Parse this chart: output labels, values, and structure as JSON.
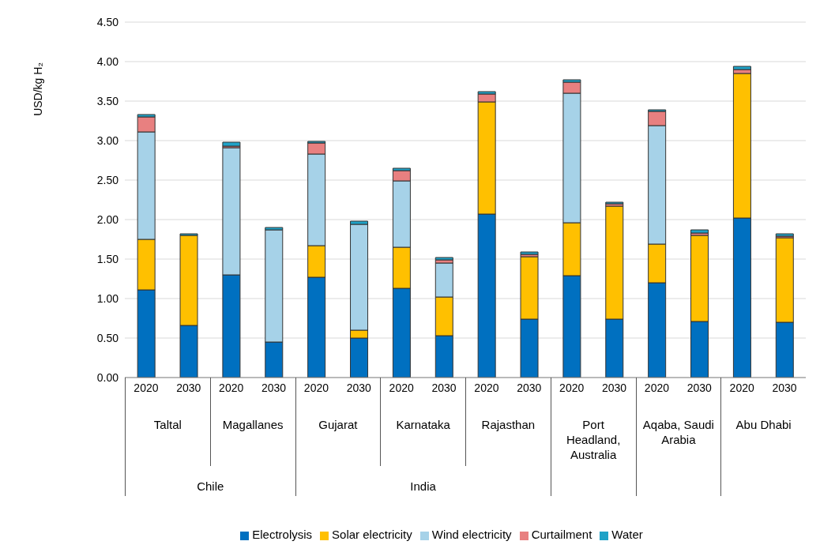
{
  "chart_data": {
    "type": "bar",
    "stacked": true,
    "ylabel": "USD/kg H₂",
    "categories": [
      "2020",
      "2030",
      "2020",
      "2030",
      "2020",
      "2030",
      "2020",
      "2030",
      "2020",
      "2030",
      "2020",
      "2030",
      "2020",
      "2030",
      "2020",
      "2030"
    ],
    "series": [
      {
        "name": "Electrolysis",
        "color": "#0070c0",
        "values": [
          1.11,
          0.66,
          1.3,
          0.45,
          1.27,
          0.5,
          1.13,
          0.53,
          2.07,
          0.74,
          1.29,
          0.74,
          1.2,
          0.71,
          2.02,
          0.7
        ]
      },
      {
        "name": "Solar electricity",
        "color": "#ffc000",
        "values": [
          0.64,
          1.14,
          0,
          0,
          0.4,
          0.1,
          0.52,
          0.49,
          1.42,
          0.79,
          0.67,
          1.43,
          0.49,
          1.09,
          1.83,
          1.07
        ]
      },
      {
        "name": "Wind electricity",
        "color": "#a6d2e8",
        "values": [
          1.36,
          0,
          1.61,
          1.42,
          1.16,
          1.34,
          0.84,
          0.43,
          0,
          0,
          1.64,
          0,
          1.5,
          0,
          0,
          0
        ]
      },
      {
        "name": "Curtailment",
        "color": "#e88080",
        "values": [
          0.19,
          null,
          0.02,
          0,
          0.14,
          0,
          0.13,
          0.04,
          0.1,
          0.03,
          0.14,
          0.03,
          0.18,
          0.03,
          0.05,
          0.02
        ]
      },
      {
        "name": "Water",
        "color": "#1fa2c7",
        "values": [
          0.03,
          0.02,
          0.05,
          0.03,
          0.02,
          0.04,
          0.03,
          0.03,
          0.03,
          0.03,
          0.03,
          0.02,
          0.02,
          0.04,
          0.04,
          0.03
        ]
      }
    ],
    "ylim": [
      0,
      4.5
    ],
    "yticks": [
      {
        "value": 0,
        "label": "0.00"
      },
      {
        "value": 0.5,
        "label": "0.50"
      },
      {
        "value": 1,
        "label": "1.00"
      },
      {
        "value": 1.5,
        "label": "1.50"
      },
      {
        "value": 2,
        "label": "2.00"
      },
      {
        "value": 2.5,
        "label": "2.50"
      },
      {
        "value": 3,
        "label": "3.00"
      },
      {
        "value": 3.5,
        "label": "3.50"
      },
      {
        "value": 4,
        "label": "4.00"
      },
      {
        "value": 4.5,
        "label": "4.50"
      }
    ],
    "grid": "y",
    "legend": "bottom",
    "annotations": [
      "Taltal",
      "Magallanes",
      "Gujarat",
      "Karnataka",
      "Rajasthan",
      "Port Headland, Australia",
      "Aqaba, Saudi Arabia",
      "Abu Dhabi",
      "Chile",
      "India"
    ]
  }
}
